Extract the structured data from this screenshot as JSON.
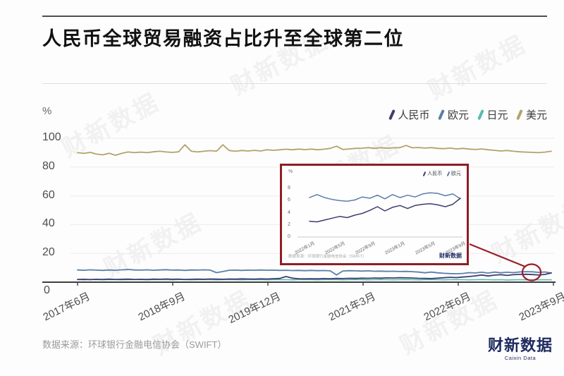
{
  "page": {
    "title": "人民币全球贸易融资占比升至全球第二位",
    "source": "数据来源：环球银行金融电信协会（SWIFT）",
    "watermark": "财新数据",
    "logo_text": "财新数据",
    "logo_sub": "Caixin Data"
  },
  "colors": {
    "rmb": "#3f3d6e",
    "eur": "#5a7fa8",
    "jpy": "#57bab1",
    "usd": "#b3a26a",
    "callout_red": "#9a1e28",
    "axis": "#3f3f3f",
    "grid": "#ececec"
  },
  "chart_data": [
    {
      "type": "line",
      "title": "人民币全球贸易融资占比升至全球第二位",
      "unit_label": "%",
      "ylim": [
        0,
        100
      ],
      "yticks": [
        0,
        20,
        40,
        60,
        80,
        100
      ],
      "x_range": [
        "2017年6月",
        "2023年9月"
      ],
      "xtick_labels": [
        "2017年6月",
        "2018年9月",
        "2019年12月",
        "2021年3月",
        "2022年6月",
        "2023年9月"
      ],
      "legend_position": "top-right",
      "grid": "horizontal",
      "series": [
        {
          "name": "人民币",
          "color": "#3f3d6e",
          "values": [
            1.9,
            2.0,
            1.8,
            2.0,
            1.9,
            2.1,
            1.9,
            2.0,
            2.1,
            1.9,
            2.0,
            1.9,
            2.1,
            2.0,
            2.2,
            2.0,
            2.1,
            1.9,
            2.0,
            2.1,
            2.0,
            2.2,
            2.1,
            2.0,
            2.2,
            2.1,
            2.3,
            2.2,
            2.1,
            2.3,
            2.2,
            2.4,
            2.6,
            3.9,
            2.8,
            2.4,
            2.3,
            2.4,
            2.3,
            2.5,
            2.4,
            2.6,
            2.5,
            2.7,
            2.6,
            2.8,
            2.7,
            2.9,
            2.8,
            3.0,
            2.9,
            3.1,
            3.0,
            2.9,
            2.7,
            2.6,
            2.5,
            2.8,
            3.1,
            3.4,
            3.2,
            3.6,
            3.9,
            4.4,
            5.0,
            4.3,
            4.9,
            5.2,
            4.7,
            5.2,
            5.4,
            5.5,
            5.3,
            5.0,
            5.4,
            6.4
          ]
        },
        {
          "name": "欧元",
          "color": "#5a7fa8",
          "values": [
            8.5,
            8.3,
            8.6,
            8.4,
            8.2,
            8.5,
            8.3,
            8.6,
            8.8,
            8.5,
            8.4,
            8.6,
            8.3,
            8.5,
            8.7,
            8.4,
            8.5,
            8.2,
            8.5,
            8.4,
            8.6,
            8.4,
            6.6,
            7.4,
            8.3,
            8.4,
            8.2,
            8.4,
            8.3,
            8.5,
            8.3,
            8.4,
            8.2,
            8.3,
            8.1,
            8.2,
            8.0,
            8.2,
            8.0,
            8.1,
            7.9,
            5.0,
            7.8,
            8.0,
            7.9,
            7.7,
            7.9,
            7.6,
            7.7,
            7.5,
            7.6,
            7.4,
            7.5,
            7.3,
            7.0,
            6.5,
            7.0,
            6.5,
            6.2,
            6.0,
            5.9,
            6.1,
            6.6,
            6.4,
            6.9,
            6.3,
            7.0,
            6.5,
            6.9,
            6.6,
            7.1,
            7.3,
            7.2,
            6.8,
            7.1,
            6.3
          ]
        },
        {
          "name": "日元",
          "color": "#57bab1",
          "values": [
            1.7,
            1.6,
            1.8,
            1.7,
            1.6,
            1.8,
            1.7,
            1.6,
            1.7,
            1.8,
            1.7,
            1.6,
            1.7,
            1.8,
            1.7,
            1.6,
            1.8,
            1.7,
            1.6,
            1.7,
            1.8,
            1.7,
            1.6,
            1.7,
            1.8,
            1.7,
            1.6,
            1.7,
            1.8,
            1.7,
            1.6,
            1.7,
            1.8,
            1.7,
            1.6,
            1.7,
            1.8,
            1.7,
            1.6,
            1.7,
            1.8,
            1.7,
            1.6,
            1.7,
            1.8,
            1.7,
            1.6,
            1.7,
            1.8,
            1.7,
            1.6,
            1.7,
            1.8,
            1.7,
            1.6,
            1.7,
            1.8,
            1.7,
            1.6,
            1.7,
            1.8,
            1.7,
            1.6,
            1.7,
            1.8,
            1.7,
            1.6,
            1.7,
            1.5,
            1.6,
            1.7,
            1.6,
            1.5,
            1.6,
            1.7,
            1.6
          ]
        },
        {
          "name": "美元",
          "color": "#b3a26a",
          "values": [
            90,
            89.5,
            90.2,
            89,
            88.5,
            89.6,
            88.2,
            89.5,
            90.5,
            90,
            90.4,
            90,
            90.6,
            91,
            90.5,
            90.2,
            90.6,
            95.5,
            91,
            90.5,
            91,
            91.4,
            91,
            95.5,
            91.5,
            91,
            91.5,
            91.2,
            91.6,
            91.2,
            92,
            91.6,
            92,
            92.4,
            92,
            92.5,
            92.1,
            92.5,
            92,
            92.4,
            93,
            94.5,
            92.2,
            92.6,
            93,
            93.1,
            93.5,
            93,
            93.5,
            93.1,
            93.4,
            93.5,
            95,
            93.4,
            93.6,
            93.2,
            93.5,
            93,
            92.8,
            93.2,
            92.6,
            93,
            92.5,
            92.2,
            92.6,
            92,
            91.6,
            91.2,
            91.5,
            91,
            90.6,
            90.4,
            90.2,
            90,
            90.4,
            91
          ]
        }
      ]
    },
    {
      "type": "line",
      "unit_label": "%",
      "ylim": [
        0,
        8
      ],
      "yticks": [
        0,
        2,
        4,
        6,
        8
      ],
      "x_range": [
        "2022年1月",
        "2023年9月"
      ],
      "xtick_labels": [
        "2022年1月",
        "2022年5月",
        "2022年9月",
        "2023年1月",
        "2023年5月",
        "2023年9月"
      ],
      "legend_position": "top-right",
      "source": "数据来源：环球银行金融电信协会（SWIFT）",
      "logo": "财新数据",
      "series": [
        {
          "name": "人民币",
          "color": "#3f3d6e",
          "values": [
            2.6,
            2.5,
            2.8,
            3.1,
            3.4,
            3.2,
            3.6,
            3.9,
            4.4,
            5.0,
            4.3,
            4.9,
            5.2,
            4.7,
            5.2,
            5.4,
            5.5,
            5.3,
            5.0,
            5.4,
            6.4
          ]
        },
        {
          "name": "欧元",
          "color": "#5a7fa8",
          "values": [
            6.5,
            7.0,
            6.5,
            6.2,
            6.0,
            5.9,
            6.1,
            6.6,
            6.4,
            6.9,
            6.3,
            7.0,
            6.5,
            6.9,
            6.6,
            7.1,
            7.3,
            7.2,
            6.8,
            7.1,
            6.3
          ]
        }
      ]
    }
  ]
}
